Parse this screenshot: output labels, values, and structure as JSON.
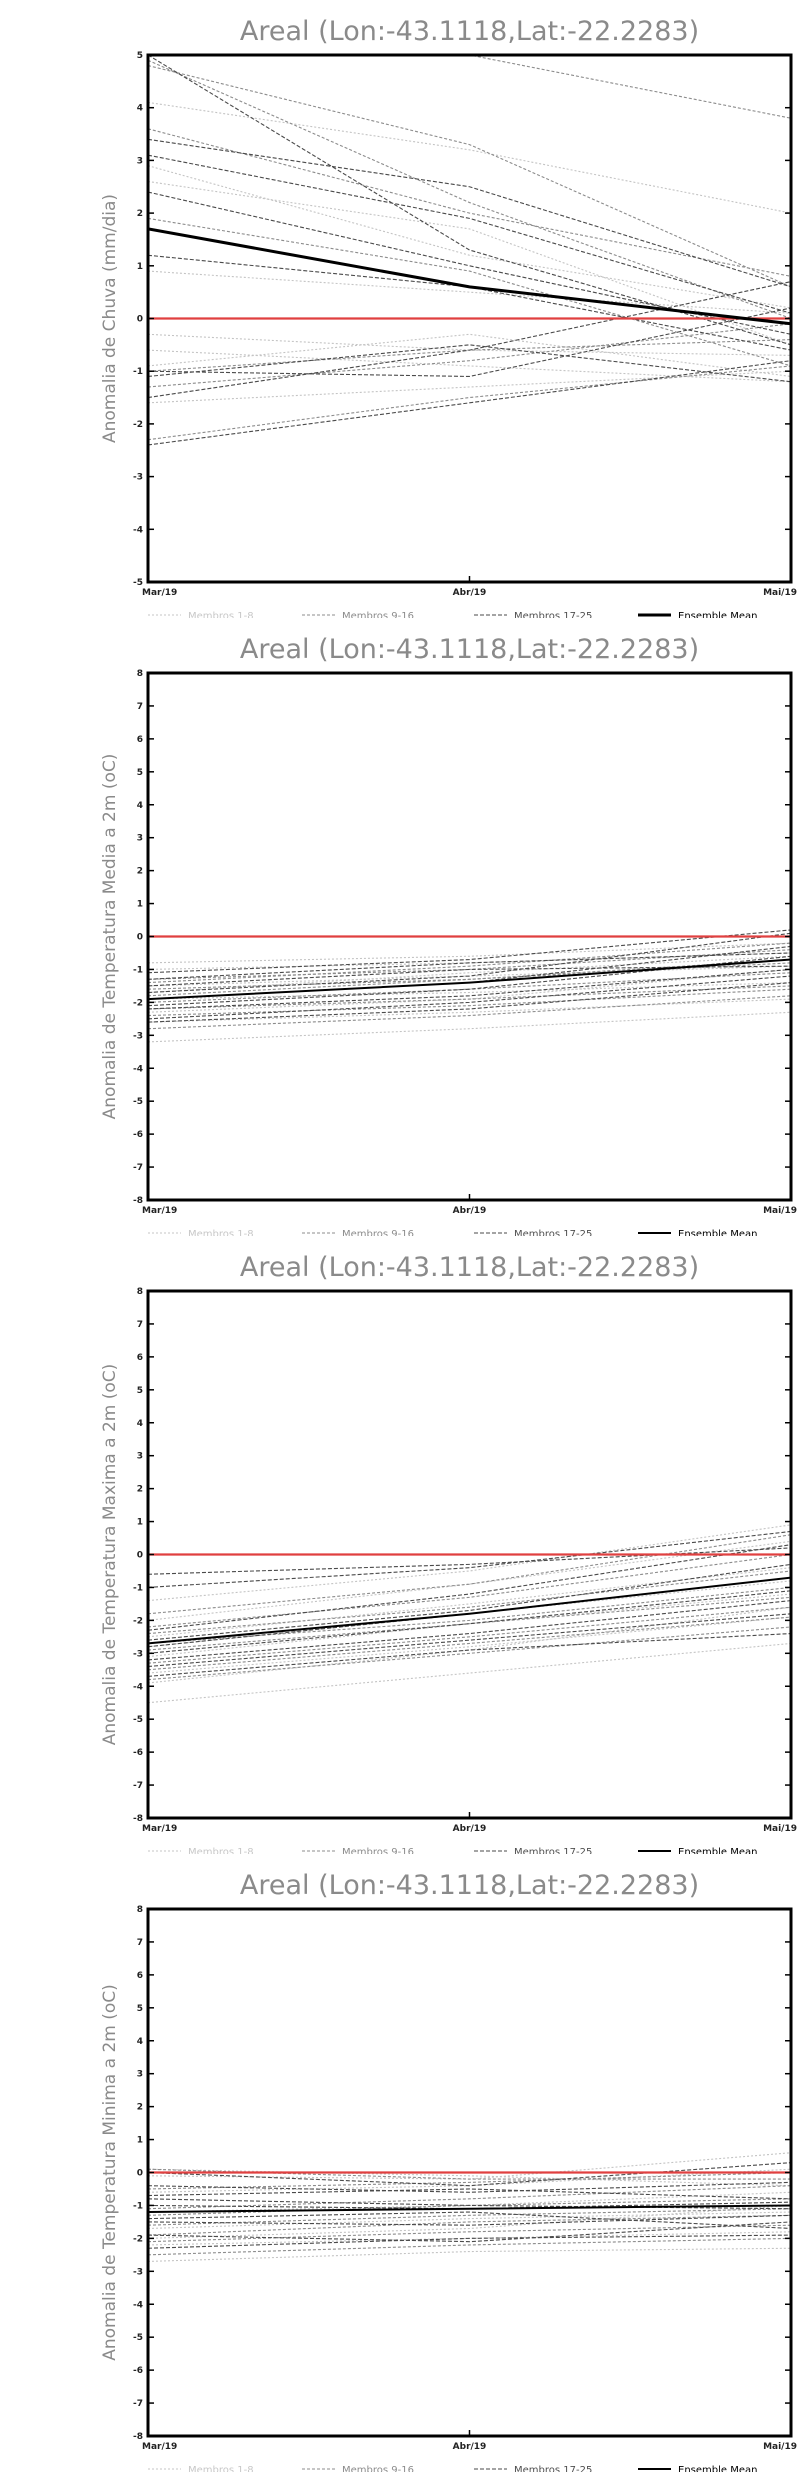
{
  "colors": {
    "members_1_8": "#c4c4c4",
    "members_9_16": "#8c8c8c",
    "members_17_25": "#4a4a4a",
    "mean": "#000000",
    "zero_line": "#e04040",
    "frame": "#000000",
    "title": "#8a8a8a"
  },
  "legend": {
    "members_1_8": "Membros 1-8",
    "members_9_16": "Membros 9-16",
    "members_17_25": "Membros 17-25",
    "mean": "Ensemble Mean"
  },
  "chart_data": [
    {
      "type": "line",
      "title": "Areal (Lon:-43.1118,Lat:-22.2283)",
      "xlabel": "",
      "ylabel": "Anomalia de Chuva (mm/dia)",
      "categories": [
        "Mar/19",
        "Abr/19",
        "Mai/19"
      ],
      "yticks": [
        "-5",
        "-4",
        "-3",
        "-2",
        "-1",
        "0",
        "1",
        "2",
        "3",
        "4",
        "5"
      ],
      "ylim": [
        -5,
        5
      ],
      "grid": false,
      "legend_position": "bottom",
      "reference_line": 0,
      "members_1_8": [
        [
          4.1,
          3.2,
          2.0
        ],
        [
          2.6,
          1.7,
          -0.5
        ],
        [
          0.9,
          0.5,
          0.1
        ],
        [
          -0.3,
          -0.6,
          -0.7
        ],
        [
          -0.6,
          -0.9,
          -1.2
        ],
        [
          -1.6,
          -1.3,
          -1.0
        ],
        [
          -0.9,
          -0.3,
          -1.1
        ],
        [
          2.9,
          1.2,
          0.2
        ]
      ],
      "members_9_16": [
        [
          4.8,
          3.3,
          0.6
        ],
        [
          3.6,
          2.0,
          0.8
        ],
        [
          1.9,
          0.9,
          -0.9
        ],
        [
          -1.0,
          -0.6,
          -0.4
        ],
        [
          -1.3,
          -0.8,
          -0.1
        ],
        [
          -2.3,
          -1.5,
          -0.9
        ],
        [
          4.9,
          2.2,
          0.0
        ],
        [
          5.0,
          5.0,
          3.8
        ]
      ],
      "members_17_25": [
        [
          3.4,
          2.5,
          0.6
        ],
        [
          3.1,
          1.9,
          0.1
        ],
        [
          2.4,
          1.0,
          -0.3
        ],
        [
          1.2,
          0.6,
          -0.6
        ],
        [
          -1.0,
          -1.1,
          0.2
        ],
        [
          -1.5,
          -0.6,
          0.7
        ],
        [
          -2.4,
          -1.6,
          -0.8
        ],
        [
          -1.1,
          -0.5,
          -1.2
        ],
        [
          5.0,
          1.3,
          -0.5
        ]
      ],
      "mean": [
        1.7,
        0.6,
        -0.1
      ]
    },
    {
      "type": "line",
      "title": "Areal (Lon:-43.1118,Lat:-22.2283)",
      "xlabel": "",
      "ylabel": "Anomalia de Temperatura Media a 2m (oC)",
      "categories": [
        "Mar/19",
        "Abr/19",
        "Mai/19"
      ],
      "yticks": [
        "-8",
        "-7",
        "-6",
        "-5",
        "-4",
        "-3",
        "-2",
        "-1",
        "0",
        "1",
        "2",
        "3",
        "4",
        "5",
        "6",
        "7",
        "8"
      ],
      "ylim": [
        -8,
        8
      ],
      "grid": false,
      "legend_position": "bottom",
      "reference_line": 0,
      "members_1_8": [
        [
          -3.2,
          -2.8,
          -2.3
        ],
        [
          -2.6,
          -2.3,
          -1.9
        ],
        [
          -1.9,
          -1.7,
          -1.4
        ],
        [
          -1.5,
          -1.2,
          -0.9
        ],
        [
          -1.0,
          -0.8,
          -0.5
        ],
        [
          -2.3,
          -1.9,
          -1.0
        ],
        [
          -1.7,
          -1.1,
          -0.6
        ],
        [
          -0.8,
          -0.6,
          -0.2
        ]
      ],
      "members_9_16": [
        [
          -2.4,
          -2.1,
          -1.6
        ],
        [
          -2.0,
          -1.6,
          -1.1
        ],
        [
          -1.6,
          -1.3,
          -0.8
        ],
        [
          -1.3,
          -1.0,
          -0.4
        ],
        [
          -2.8,
          -2.4,
          -1.8
        ],
        [
          -2.2,
          -1.9,
          -1.5
        ],
        [
          -1.8,
          -1.3,
          -0.7
        ],
        [
          -1.4,
          -0.9,
          -0.2
        ]
      ],
      "members_17_25": [
        [
          -2.5,
          -2.0,
          -1.2
        ],
        [
          -2.1,
          -1.6,
          -0.6
        ],
        [
          -1.9,
          -1.4,
          -0.3
        ],
        [
          -1.7,
          -1.2,
          0.1
        ],
        [
          -1.5,
          -1.0,
          -0.9
        ],
        [
          -1.3,
          -0.8,
          -0.5
        ],
        [
          -1.1,
          -0.7,
          0.2
        ],
        [
          -2.6,
          -2.2,
          -1.4
        ],
        [
          -2.2,
          -1.8,
          -1.0
        ]
      ],
      "mean": [
        -1.9,
        -1.4,
        -0.7
      ]
    },
    {
      "type": "line",
      "title": "Areal (Lon:-43.1118,Lat:-22.2283)",
      "xlabel": "",
      "ylabel": "Anomalia de Temperatura Maxima a 2m (oC)",
      "categories": [
        "Mar/19",
        "Abr/19",
        "Mai/19"
      ],
      "yticks": [
        "-8",
        "-7",
        "-6",
        "-5",
        "-4",
        "-3",
        "-2",
        "-1",
        "0",
        "1",
        "2",
        "3",
        "4",
        "5",
        "6",
        "7",
        "8"
      ],
      "ylim": [
        -8,
        8
      ],
      "grid": false,
      "legend_position": "bottom",
      "reference_line": 0,
      "members_1_8": [
        [
          -4.5,
          -3.6,
          -2.7
        ],
        [
          -3.6,
          -2.8,
          -1.9
        ],
        [
          -2.8,
          -1.8,
          -0.8
        ],
        [
          -2.0,
          -0.9,
          0.4
        ],
        [
          -1.4,
          -0.5,
          0.9
        ],
        [
          -3.1,
          -2.1,
          -1.2
        ],
        [
          -2.5,
          -1.5,
          -0.4
        ],
        [
          -3.9,
          -2.9,
          -1.6
        ]
      ],
      "members_9_16": [
        [
          -3.8,
          -3.0,
          -2.2
        ],
        [
          -3.3,
          -2.5,
          -1.6
        ],
        [
          -2.7,
          -2.0,
          -1.0
        ],
        [
          -2.2,
          -1.3,
          0.0
        ],
        [
          -1.8,
          -0.9,
          0.6
        ],
        [
          -2.9,
          -2.1,
          -1.3
        ],
        [
          -2.4,
          -1.6,
          -0.5
        ],
        [
          -3.5,
          -2.7,
          -1.9
        ]
      ],
      "members_17_25": [
        [
          -3.4,
          -2.6,
          -1.8
        ],
        [
          -3.0,
          -2.1,
          -1.1
        ],
        [
          -2.6,
          -1.7,
          -0.3
        ],
        [
          -2.3,
          -1.2,
          0.3
        ],
        [
          -1.0,
          -0.4,
          0.7
        ],
        [
          -0.6,
          -0.3,
          0.2
        ],
        [
          -3.7,
          -2.9,
          -2.4
        ],
        [
          -3.2,
          -2.4,
          -1.4
        ],
        [
          -2.8,
          -1.8,
          -0.7
        ]
      ],
      "mean": [
        -2.7,
        -1.8,
        -0.7
      ]
    },
    {
      "type": "line",
      "title": "Areal (Lon:-43.1118,Lat:-22.2283)",
      "xlabel": "",
      "ylabel": "Anomalia de Temperatura Minima a 2m (oC)",
      "categories": [
        "Mar/19",
        "Abr/19",
        "Mai/19"
      ],
      "yticks": [
        "-8",
        "-7",
        "-6",
        "-5",
        "-4",
        "-3",
        "-2",
        "-1",
        "0",
        "1",
        "2",
        "3",
        "4",
        "5",
        "6",
        "7",
        "8"
      ],
      "ylim": [
        -8,
        8
      ],
      "grid": false,
      "legend_position": "bottom",
      "reference_line": 0,
      "members_1_8": [
        [
          -2.7,
          -2.4,
          -2.3
        ],
        [
          -2.2,
          -2.0,
          -1.8
        ],
        [
          -1.7,
          -1.4,
          -1.2
        ],
        [
          -1.2,
          -1.0,
          -0.6
        ],
        [
          -0.6,
          -0.4,
          0.1
        ],
        [
          -0.1,
          -0.2,
          0.6
        ],
        [
          -2.0,
          -1.7,
          -1.0
        ],
        [
          0.1,
          -0.1,
          -0.4
        ]
      ],
      "members_9_16": [
        [
          -2.5,
          -2.2,
          -2.0
        ],
        [
          -2.1,
          -1.8,
          -1.6
        ],
        [
          -1.6,
          -1.3,
          -1.1
        ],
        [
          -1.1,
          -0.8,
          -0.4
        ],
        [
          -0.5,
          -0.3,
          0.0
        ],
        [
          0.1,
          -0.2,
          -0.2
        ],
        [
          -1.9,
          -1.5,
          -1.3
        ],
        [
          -1.3,
          -1.0,
          -0.8
        ]
      ],
      "members_17_25": [
        [
          -2.3,
          -2.0,
          -1.9
        ],
        [
          -1.9,
          -2.1,
          -1.5
        ],
        [
          -1.5,
          -1.6,
          -1.3
        ],
        [
          -1.0,
          -1.1,
          -0.9
        ],
        [
          -0.7,
          -0.5,
          -0.8
        ],
        [
          -0.4,
          -0.6,
          -0.3
        ],
        [
          0.0,
          -0.4,
          0.3
        ],
        [
          -1.4,
          -1.2,
          -1.7
        ],
        [
          -0.8,
          -1.0,
          -1.1
        ]
      ],
      "mean": [
        -1.2,
        -1.1,
        -1.0
      ]
    }
  ]
}
